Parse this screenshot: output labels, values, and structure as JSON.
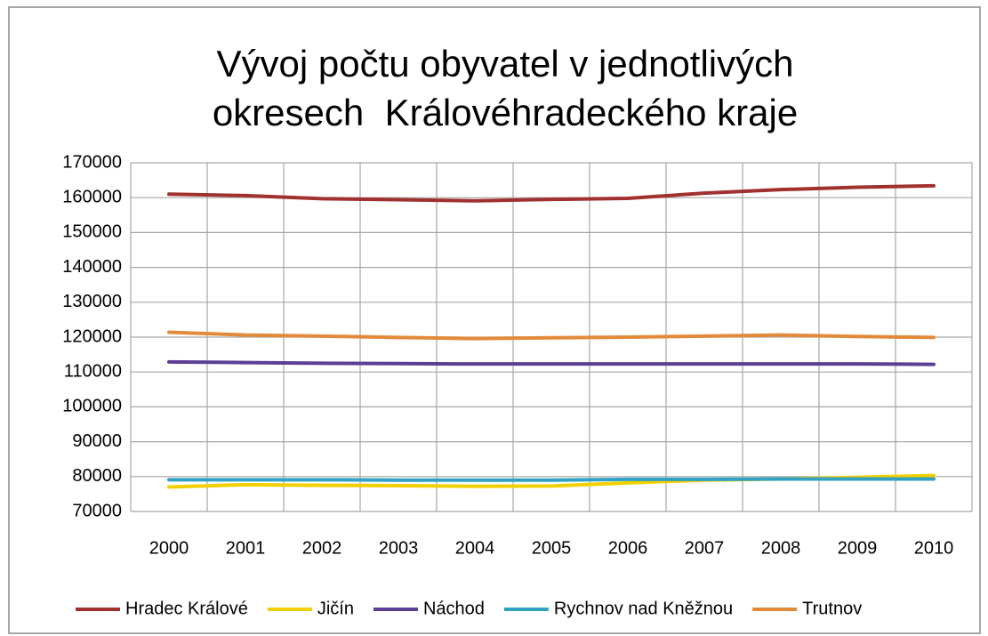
{
  "chart_data": {
    "type": "line",
    "title": [
      "Vývoj počtu obyvatel v jednotlivých",
      "okresech  Královéhradeckého kraje"
    ],
    "categories": [
      "2000",
      "2001",
      "2002",
      "2003",
      "2004",
      "2005",
      "2006",
      "2007",
      "2008",
      "2009",
      "2010"
    ],
    "series": [
      {
        "name": "Hradec Králové",
        "color": "#a0312f",
        "values": [
          161000,
          160600,
          159700,
          159400,
          159100,
          159500,
          159800,
          161300,
          162300,
          163000,
          163400
        ]
      },
      {
        "name": "Jičín",
        "color": "#f2d000",
        "values": [
          77000,
          77700,
          77500,
          77400,
          77200,
          77300,
          78200,
          79000,
          79300,
          79800,
          80300
        ]
      },
      {
        "name": "Náchod",
        "color": "#5b3f96",
        "values": [
          112900,
          112700,
          112500,
          112400,
          112300,
          112300,
          112300,
          112300,
          112300,
          112300,
          112200
        ]
      },
      {
        "name": "Rychnov nad Kněžnou",
        "color": "#31a2c4",
        "values": [
          79100,
          79100,
          79100,
          79000,
          79000,
          79000,
          79200,
          79200,
          79300,
          79300,
          79300
        ]
      },
      {
        "name": "Trutnov",
        "color": "#e38a3a",
        "values": [
          121400,
          120600,
          120300,
          119900,
          119600,
          119800,
          120000,
          120300,
          120600,
          120200,
          119900
        ]
      }
    ],
    "ylim": [
      70000,
      170000
    ],
    "yticks": [
      70000,
      80000,
      90000,
      100000,
      110000,
      120000,
      130000,
      140000,
      150000,
      160000,
      170000
    ],
    "grid": true,
    "legend": "bottom"
  }
}
